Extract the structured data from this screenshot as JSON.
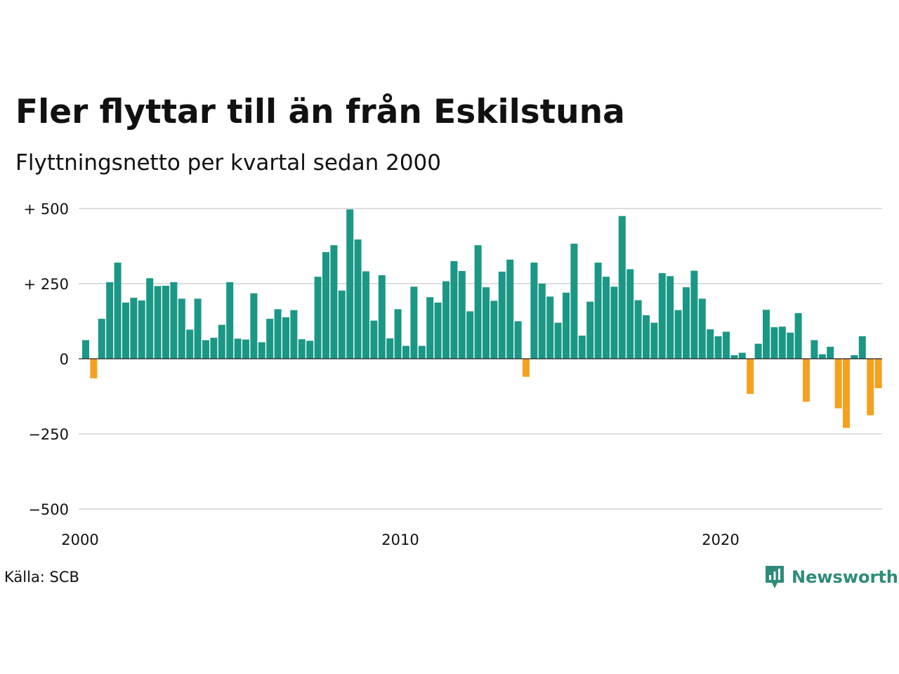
{
  "header": {
    "title": "Fler flyttar till än från Eskilstuna",
    "subtitle": "Flyttningsnetto per kvartal sedan 2000"
  },
  "footer": {
    "source": "Källa: SCB",
    "brand": "Newsworthy",
    "brand_icon": "newsworthy-logo-icon",
    "brand_color": "#2e8b7a"
  },
  "chart_data": {
    "type": "bar",
    "title": "Fler flyttar till än från Eskilstuna",
    "subtitle": "Flyttningsnetto per kvartal sedan 2000",
    "xlabel": "",
    "ylabel": "",
    "ylim": [
      -500,
      500
    ],
    "yticks": [
      {
        "value": 500,
        "label": "+ 500"
      },
      {
        "value": 250,
        "label": "+ 250"
      },
      {
        "value": 0,
        "label": "0"
      },
      {
        "value": -250,
        "label": "−250"
      },
      {
        "value": -500,
        "label": "−500"
      }
    ],
    "xticks": [
      {
        "value": 2000,
        "label": "2000"
      },
      {
        "value": 2010,
        "label": "2010"
      },
      {
        "value": 2020,
        "label": "2020"
      }
    ],
    "grid": true,
    "positive_color": "#1b9786",
    "negative_color": "#f5a11f",
    "start_year": 2000,
    "values": [
      62,
      -65,
      133,
      255,
      320,
      187,
      203,
      194,
      268,
      242,
      243,
      255,
      200,
      97,
      200,
      62,
      70,
      113,
      255,
      67,
      64,
      218,
      55,
      133,
      165,
      138,
      162,
      65,
      60,
      273,
      355,
      378,
      227,
      497,
      397,
      291,
      127,
      278,
      68,
      165,
      43,
      240,
      43,
      205,
      187,
      258,
      325,
      292,
      158,
      378,
      238,
      193,
      290,
      330,
      125,
      -60,
      320,
      250,
      207,
      120,
      220,
      383,
      77,
      190,
      320,
      273,
      240,
      475,
      298,
      195,
      145,
      120,
      285,
      275,
      162,
      238,
      293,
      200,
      98,
      75,
      90,
      12,
      20,
      -117,
      50,
      163,
      105,
      107,
      87,
      152,
      -143,
      62,
      15,
      40,
      -165,
      -230,
      12,
      75,
      -188,
      -98
    ]
  }
}
